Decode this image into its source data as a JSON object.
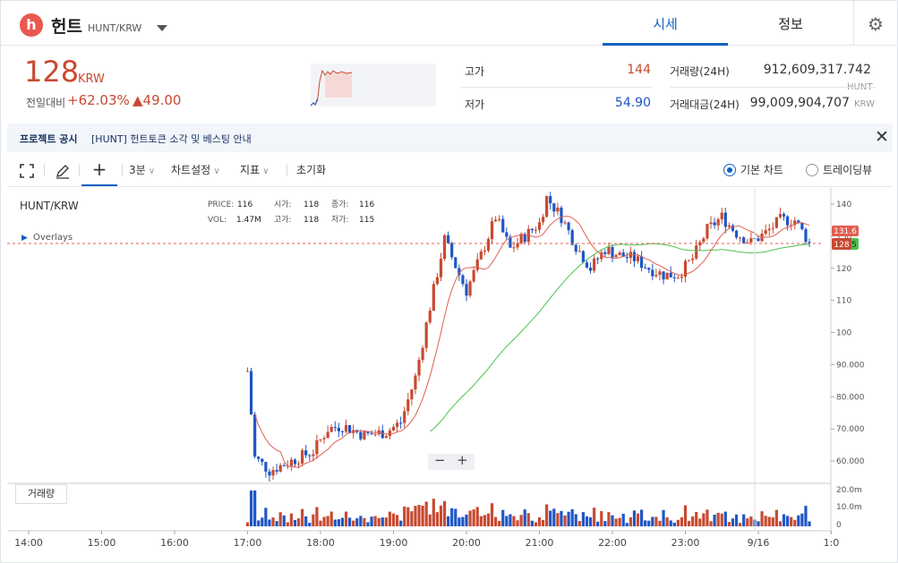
{
  "header": {
    "logo_letter": "h",
    "coin_name": "헌트",
    "pair": "HUNT/KRW",
    "tab_quote": "시세",
    "tab_info": "정보"
  },
  "price": {
    "value": "128",
    "unit": "KRW",
    "change_label": "전일대비",
    "change_rate": "+62.03%",
    "change_amount": "▲49.00"
  },
  "stats": {
    "high_label": "고가",
    "high": "144",
    "low_label": "저가",
    "low": "54.90",
    "volume_label": "거래량(24H)",
    "volume": "912,609,317.742",
    "volume_unit": "HUNT",
    "turnover_label": "거래대금(24H)",
    "turnover": "99,009,904,707",
    "turnover_unit": "KRW"
  },
  "notice": {
    "tag": "프로젝트 공시",
    "text": "[HUNT] 헌트토큰 소각 및 베스팅 안내"
  },
  "toolbar": {
    "interval": "3분",
    "chart_settings": "차트설정",
    "indicators": "지표",
    "reset": "초기화",
    "basic_chart": "기본 차트",
    "tradingview": "트레이딩뷰"
  },
  "legend": {
    "pair": "HUNT/KRW",
    "overlays": "Overlays",
    "price_label": "PRICE:",
    "price": "116",
    "open_label": "시가:",
    "open": "118",
    "close_label": "종가:",
    "close": "116",
    "vol_label": "VOL:",
    "vol": "1.47M",
    "high_label": "고가:",
    "high": "118",
    "low_label": "저가:",
    "low": "115"
  },
  "volume_button": "거래량",
  "zoom": {
    "minus": "−",
    "plus": "+"
  },
  "price_axis": [
    "140",
    "130",
    "120",
    "110",
    "100",
    "90.000",
    "80.000",
    "70.000",
    "60.000"
  ],
  "volume_axis": [
    "20.0m",
    "10.0m",
    "0"
  ],
  "time_axis": [
    "14:00",
    "15:00",
    "16:00",
    "17:00",
    "18:00",
    "19:00",
    "20:00",
    "21:00",
    "22:00",
    "23:00",
    "9/16",
    "1:0"
  ],
  "price_markers": {
    "ma": "131.6",
    "last": "128",
    "last_suffix": "5"
  },
  "colors": {
    "up": "#c84a31",
    "down": "#1e56c6",
    "ma_short": "#e05f52",
    "ma_long": "#4cc24c",
    "accent": "#1261c4"
  },
  "chart_data": {
    "type": "candlestick",
    "ylim": [
      55,
      144
    ],
    "close_path": [
      [
        17.0,
        88
      ],
      [
        17.1,
        61
      ],
      [
        17.3,
        57
      ],
      [
        17.6,
        60
      ],
      [
        17.9,
        63
      ],
      [
        18.1,
        70
      ],
      [
        18.3,
        71
      ],
      [
        18.6,
        68
      ],
      [
        18.9,
        69
      ],
      [
        19.1,
        72
      ],
      [
        19.3,
        86
      ],
      [
        19.5,
        108
      ],
      [
        19.7,
        129
      ],
      [
        19.9,
        118
      ],
      [
        20.0,
        113
      ],
      [
        20.2,
        124
      ],
      [
        20.4,
        136
      ],
      [
        20.6,
        126
      ],
      [
        20.8,
        130
      ],
      [
        21.0,
        134
      ],
      [
        21.1,
        142
      ],
      [
        21.3,
        136
      ],
      [
        21.5,
        127
      ],
      [
        21.7,
        120
      ],
      [
        21.9,
        126
      ],
      [
        22.1,
        124
      ],
      [
        22.3,
        123
      ],
      [
        22.5,
        120
      ],
      [
        22.7,
        118
      ],
      [
        22.9,
        118
      ],
      [
        23.1,
        123
      ],
      [
        23.3,
        132
      ],
      [
        23.5,
        136
      ],
      [
        23.7,
        131
      ],
      [
        23.9,
        128
      ],
      [
        24.1,
        131
      ],
      [
        24.3,
        135
      ],
      [
        24.5,
        135
      ],
      [
        24.7,
        128
      ]
    ]
  }
}
